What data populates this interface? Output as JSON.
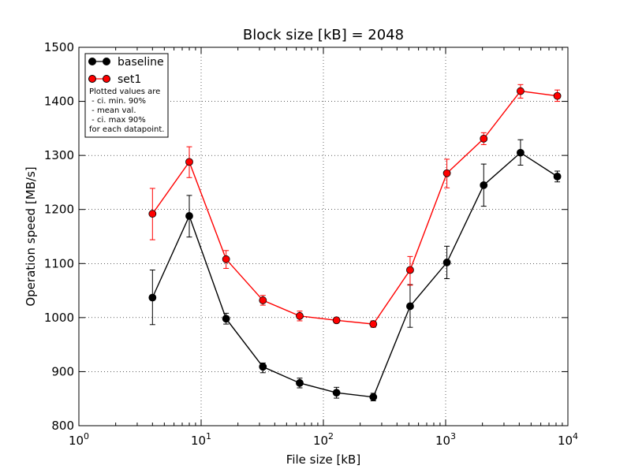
{
  "chart_data": {
    "type": "line",
    "title": "Block size [kB] = 2048",
    "xlabel": "File size [kB]",
    "ylabel": "Operation speed [MB/s]",
    "xscale": "log",
    "xlim": [
      1,
      10000
    ],
    "ylim": [
      800,
      1500
    ],
    "xticks": [
      {
        "value": 1,
        "base": "10",
        "exp": "0"
      },
      {
        "value": 10,
        "base": "10",
        "exp": "1"
      },
      {
        "value": 100,
        "base": "10",
        "exp": "2"
      },
      {
        "value": 1000,
        "base": "10",
        "exp": "3"
      },
      {
        "value": 10000,
        "base": "10",
        "exp": "4"
      }
    ],
    "yticks": [
      800,
      900,
      1000,
      1100,
      1200,
      1300,
      1400,
      1500
    ],
    "grid": true,
    "legend_position": "top-left",
    "note": [
      "Plotted values are",
      " - ci. min. 90%",
      " - mean val.",
      " - ci. max 90%",
      "for each datapoint."
    ],
    "x": [
      4,
      8,
      16,
      32,
      64,
      128,
      256,
      512,
      1024,
      2048,
      4096,
      8192
    ],
    "series": [
      {
        "name": "baseline",
        "color": "#000000",
        "values": [
          1037,
          1188,
          998,
          909,
          879,
          861,
          853,
          1021,
          1102,
          1245,
          1305,
          1261
        ],
        "ci_min": [
          987,
          1149,
          988,
          898,
          870,
          851,
          846,
          982,
          1072,
          1206,
          1282,
          1251
        ],
        "ci_max": [
          1088,
          1226,
          1008,
          916,
          888,
          871,
          860,
          1061,
          1132,
          1284,
          1329,
          1271
        ]
      },
      {
        "name": "set1",
        "color": "#ff0000",
        "values": [
          1192,
          1288,
          1108,
          1032,
          1003,
          995,
          988,
          1088,
          1267,
          1331,
          1419,
          1410
        ],
        "ci_min": [
          1144,
          1259,
          1091,
          1023,
          994,
          990,
          982,
          1060,
          1240,
          1320,
          1406,
          1400
        ],
        "ci_max": [
          1239,
          1316,
          1124,
          1041,
          1012,
          1000,
          994,
          1113,
          1293,
          1342,
          1431,
          1421
        ]
      }
    ]
  }
}
